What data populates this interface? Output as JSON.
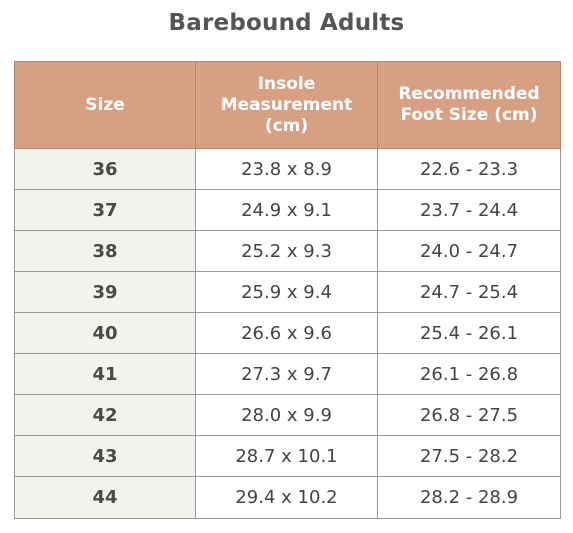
{
  "title": "Barebound Adults",
  "table": {
    "headers": [
      [
        "Size"
      ],
      [
        "Insole",
        "Measurement",
        "(cm)"
      ],
      [
        "Recommended",
        "Foot Size (cm)"
      ]
    ],
    "rows": [
      {
        "size": "36",
        "insole": "23.8 x 8.9",
        "foot": "22.6 - 23.3"
      },
      {
        "size": "37",
        "insole": "24.9 x 9.1",
        "foot": "23.7 - 24.4"
      },
      {
        "size": "38",
        "insole": "25.2 x 9.3",
        "foot": "24.0 - 24.7"
      },
      {
        "size": "39",
        "insole": "25.9 x 9.4",
        "foot": "24.7 - 25.4"
      },
      {
        "size": "40",
        "insole": "26.6 x 9.6",
        "foot": "25.4 - 26.1"
      },
      {
        "size": "41",
        "insole": "27.3 x 9.7",
        "foot": "26.1 - 26.8"
      },
      {
        "size": "42",
        "insole": "28.0 x 9.9",
        "foot": "26.8 - 27.5"
      },
      {
        "size": "43",
        "insole": "28.7 x 10.1",
        "foot": "27.5 - 28.2"
      },
      {
        "size": "44",
        "insole": "29.4 x 10.2",
        "foot": "28.2 - 28.9"
      }
    ]
  },
  "colors": {
    "header_bg": "#d8a082",
    "header_text": "#ffffff",
    "size_column_bg": "#f4f2ed",
    "title_text": "#555555"
  }
}
